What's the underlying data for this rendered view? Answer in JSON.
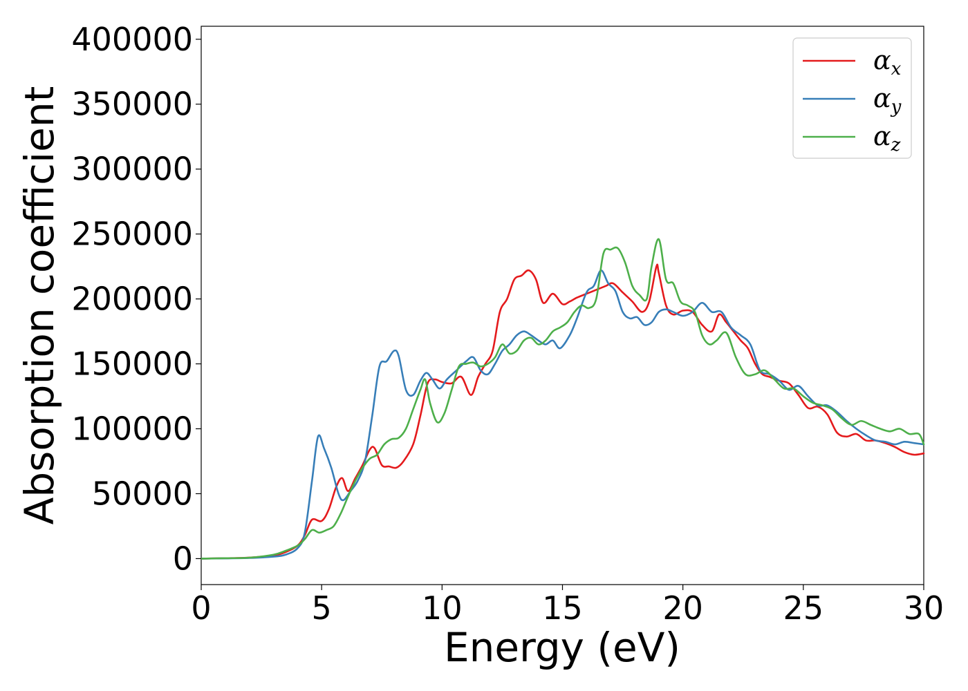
{
  "chart_data": {
    "type": "line",
    "title": "",
    "xlabel": "Energy (eV)",
    "ylabel": "Absorption coefficient",
    "xlim": [
      0,
      30
    ],
    "ylim": [
      -20000,
      410000
    ],
    "xticks": [
      0,
      5,
      10,
      15,
      20,
      25,
      30
    ],
    "yticks": [
      0,
      50000,
      100000,
      150000,
      200000,
      250000,
      300000,
      350000,
      400000
    ],
    "grid": false,
    "legend_position": "top-right",
    "series": [
      {
        "name": "α",
        "subscript": "x",
        "color": "#e41a1c",
        "x": [
          0,
          1,
          2,
          3,
          3.5,
          4,
          4.3,
          4.6,
          5.0,
          5.3,
          5.6,
          5.85,
          6.1,
          6.4,
          6.7,
          7.0,
          7.2,
          7.5,
          7.8,
          8.1,
          8.4,
          8.8,
          9.1,
          9.4,
          9.7,
          10.0,
          10.4,
          10.8,
          11.2,
          11.5,
          11.8,
          12.1,
          12.4,
          12.7,
          13.0,
          13.3,
          13.6,
          13.9,
          14.2,
          14.6,
          15.0,
          15.3,
          15.6,
          16.0,
          16.4,
          16.8,
          17.1,
          17.5,
          17.9,
          18.3,
          18.6,
          18.9,
          19.0,
          19.3,
          19.6,
          20.0,
          20.4,
          20.8,
          21.2,
          21.5,
          21.8,
          22.1,
          22.4,
          22.7,
          23.0,
          23.3,
          23.6,
          24.0,
          24.4,
          24.8,
          25.2,
          25.6,
          26.0,
          26.4,
          26.8,
          27.2,
          27.6,
          28.0,
          28.4,
          28.8,
          29.2,
          29.6,
          30.0
        ],
        "values": [
          0,
          300,
          800,
          2500,
          5000,
          10000,
          18000,
          30000,
          29000,
          38000,
          55000,
          62000,
          52000,
          62000,
          72000,
          84000,
          85000,
          72000,
          71000,
          70000,
          75000,
          88000,
          110000,
          135000,
          138000,
          136000,
          135000,
          140000,
          126000,
          140000,
          150000,
          160000,
          190000,
          200000,
          215000,
          218000,
          222000,
          215000,
          197000,
          204000,
          196000,
          198000,
          201000,
          204000,
          207000,
          210000,
          212000,
          205000,
          198000,
          190000,
          198000,
          225000,
          220000,
          195000,
          188000,
          191000,
          190000,
          180000,
          175000,
          188000,
          182000,
          175000,
          168000,
          162000,
          150000,
          142000,
          140000,
          137000,
          135000,
          126000,
          116000,
          117000,
          111000,
          97000,
          94000,
          96000,
          91000,
          91000,
          89000,
          86000,
          82000,
          80000,
          81000
        ]
      },
      {
        "name": "α",
        "subscript": "y",
        "color": "#377eb8",
        "x": [
          0,
          1,
          2,
          3,
          3.5,
          4,
          4.3,
          4.6,
          4.85,
          5.1,
          5.4,
          5.7,
          5.9,
          6.2,
          6.5,
          6.8,
          7.1,
          7.4,
          7.7,
          8.0,
          8.2,
          8.5,
          8.8,
          9.1,
          9.35,
          9.6,
          9.9,
          10.2,
          10.6,
          11.0,
          11.3,
          11.6,
          11.9,
          12.2,
          12.5,
          12.8,
          13.1,
          13.4,
          13.7,
          14.0,
          14.3,
          14.6,
          14.9,
          15.3,
          15.6,
          16.0,
          16.3,
          16.6,
          16.9,
          17.2,
          17.5,
          17.8,
          18.1,
          18.4,
          18.7,
          19.0,
          19.3,
          19.6,
          20.0,
          20.4,
          20.8,
          21.2,
          21.6,
          22.0,
          22.4,
          22.8,
          23.2,
          23.6,
          24.0,
          24.4,
          24.8,
          25.2,
          25.6,
          26.0,
          26.4,
          26.8,
          27.2,
          27.6,
          28.0,
          28.4,
          28.8,
          29.2,
          29.6,
          30.0
        ],
        "values": [
          0,
          200,
          500,
          1500,
          3000,
          8000,
          20000,
          60000,
          94000,
          85000,
          70000,
          50000,
          45000,
          52000,
          60000,
          75000,
          110000,
          148000,
          152000,
          160000,
          156000,
          130000,
          126000,
          137000,
          143000,
          138000,
          131000,
          138000,
          145000,
          152000,
          155000,
          145000,
          142000,
          150000,
          160000,
          165000,
          172000,
          175000,
          172000,
          168000,
          165000,
          168000,
          162000,
          172000,
          185000,
          205000,
          210000,
          222000,
          212000,
          206000,
          190000,
          185000,
          186000,
          180000,
          182000,
          190000,
          192000,
          190000,
          187000,
          190000,
          197000,
          190000,
          190000,
          178000,
          172000,
          165000,
          145000,
          142000,
          137000,
          130000,
          133000,
          125000,
          118000,
          118000,
          113000,
          106000,
          100000,
          95000,
          91000,
          90000,
          88000,
          90000,
          89000,
          88000
        ]
      },
      {
        "name": "α",
        "subscript": "z",
        "color": "#4daf4a",
        "x": [
          0,
          1,
          2,
          3,
          3.5,
          4,
          4.3,
          4.6,
          4.9,
          5.2,
          5.5,
          5.8,
          6.1,
          6.4,
          6.7,
          7.0,
          7.3,
          7.6,
          7.9,
          8.2,
          8.5,
          8.8,
          9.1,
          9.3,
          9.5,
          9.8,
          10.1,
          10.4,
          10.7,
          11.0,
          11.3,
          11.6,
          11.9,
          12.2,
          12.5,
          12.8,
          13.1,
          13.4,
          13.7,
          14.0,
          14.3,
          14.6,
          14.9,
          15.2,
          15.5,
          15.8,
          16.1,
          16.4,
          16.7,
          17.0,
          17.3,
          17.6,
          17.9,
          18.2,
          18.5,
          18.7,
          19.0,
          19.3,
          19.6,
          19.9,
          20.2,
          20.5,
          20.8,
          21.1,
          21.4,
          21.8,
          22.2,
          22.6,
          23.0,
          23.4,
          23.8,
          24.2,
          24.6,
          25.0,
          25.4,
          25.8,
          26.2,
          26.6,
          27.0,
          27.4,
          27.8,
          28.2,
          28.6,
          29.0,
          29.4,
          29.8,
          30.0
        ],
        "values": [
          0,
          300,
          700,
          3000,
          6000,
          10000,
          15000,
          22000,
          20000,
          22000,
          25000,
          35000,
          48000,
          60000,
          70000,
          77000,
          80000,
          88000,
          92000,
          93000,
          100000,
          115000,
          130000,
          138000,
          120000,
          105000,
          112000,
          130000,
          148000,
          150000,
          151000,
          148000,
          150000,
          155000,
          165000,
          158000,
          160000,
          168000,
          170000,
          165000,
          168000,
          175000,
          178000,
          182000,
          190000,
          195000,
          193000,
          200000,
          235000,
          238000,
          239000,
          228000,
          210000,
          203000,
          200000,
          225000,
          246000,
          215000,
          212000,
          198000,
          195000,
          190000,
          172000,
          165000,
          168000,
          174000,
          155000,
          142000,
          142000,
          145000,
          138000,
          131000,
          131000,
          125000,
          120000,
          118000,
          115000,
          108000,
          103000,
          106000,
          103000,
          100000,
          98000,
          100000,
          96000,
          96000,
          88000
        ]
      }
    ]
  }
}
